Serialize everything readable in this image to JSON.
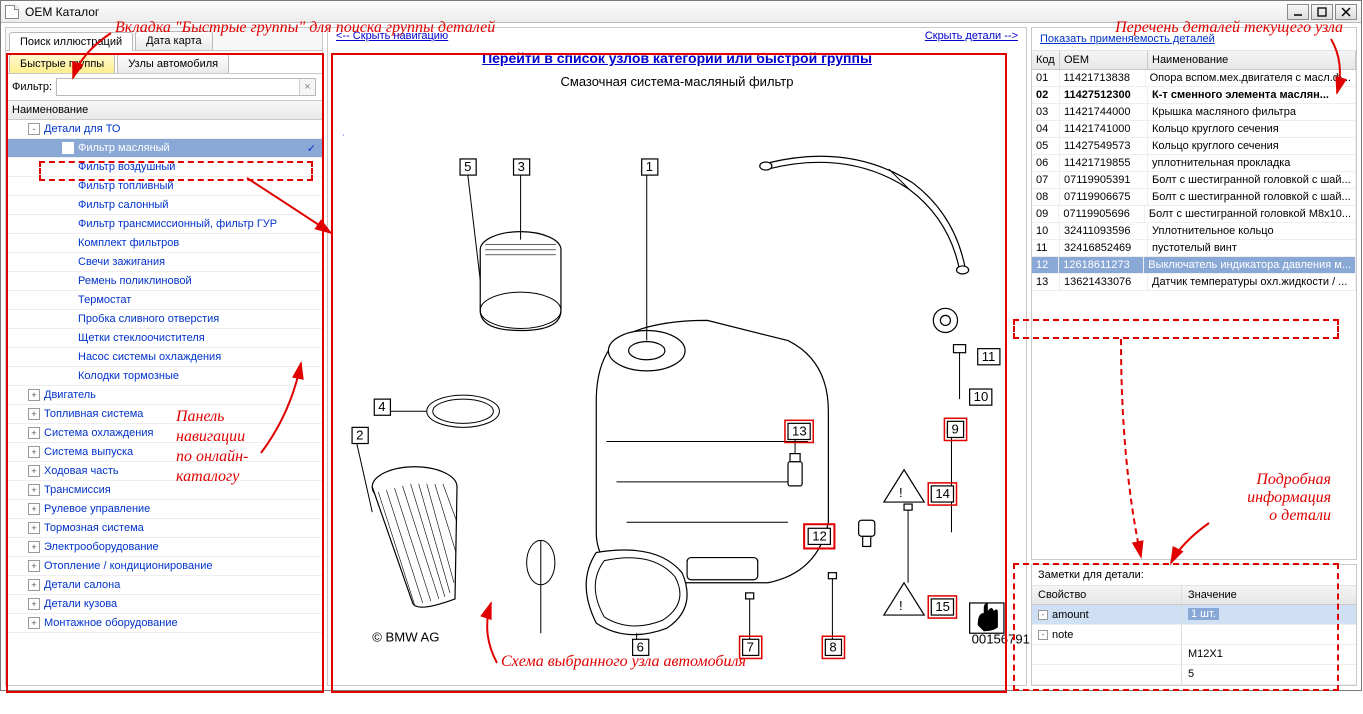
{
  "window": {
    "title": "OEM Каталог"
  },
  "annotations": {
    "top_tabs": "Вкладка \"Быстрые группы\" для поиска группы деталей",
    "nav_panel_l1": "Панель",
    "nav_panel_l2": "навигации",
    "nav_panel_l3": "по онлайн-",
    "nav_panel_l4": "каталогу",
    "center_caption": "Схема выбранного узла автомобиля",
    "right_caption": "Перечень деталей текущего узла",
    "detail_l1": "Подробная",
    "detail_l2": "информация",
    "detail_l3": "о детали"
  },
  "left": {
    "main_tabs": [
      "Поиск иллюстраций",
      "Дата карта"
    ],
    "sub_tabs": [
      "Быстрые группы",
      "Узлы автомобиля"
    ],
    "filter_label": "Фильтр:",
    "tree_header": "Наименование",
    "tree": [
      {
        "label": "Детали для ТО",
        "lvl": 1,
        "exp": "-"
      },
      {
        "label": "Фильтр масляный",
        "lvl": 2,
        "selected": true,
        "check": true
      },
      {
        "label": "Фильтр воздушный",
        "lvl": 2
      },
      {
        "label": "Фильтр топливный",
        "lvl": 2
      },
      {
        "label": "Фильтр салонный",
        "lvl": 2
      },
      {
        "label": "Фильтр трансмиссионный, фильтр ГУР",
        "lvl": 2
      },
      {
        "label": "Комплект фильтров",
        "lvl": 2
      },
      {
        "label": "Свечи зажигания",
        "lvl": 2
      },
      {
        "label": "Ремень поликлиновой",
        "lvl": 2
      },
      {
        "label": "Термостат",
        "lvl": 2
      },
      {
        "label": "Пробка сливного отверстия",
        "lvl": 2
      },
      {
        "label": "Щетки стеклоочистителя",
        "lvl": 2
      },
      {
        "label": "Насос системы охлаждения",
        "lvl": 2
      },
      {
        "label": "Колодки тормозные",
        "lvl": 2
      },
      {
        "label": "Двигатель",
        "lvl": 1,
        "exp": "+"
      },
      {
        "label": "Топливная система",
        "lvl": 1,
        "exp": "+"
      },
      {
        "label": "Система охлаждения",
        "lvl": 1,
        "exp": "+"
      },
      {
        "label": "Система выпуска",
        "lvl": 1,
        "exp": "+"
      },
      {
        "label": "Ходовая часть",
        "lvl": 1,
        "exp": "+"
      },
      {
        "label": "Трансмиссия",
        "lvl": 1,
        "exp": "+"
      },
      {
        "label": "Рулевое управление",
        "lvl": 1,
        "exp": "+"
      },
      {
        "label": "Тормозная система",
        "lvl": 1,
        "exp": "+"
      },
      {
        "label": "Электрооборудование",
        "lvl": 1,
        "exp": "+"
      },
      {
        "label": "Отопление / кондиционирование",
        "lvl": 1,
        "exp": "+"
      },
      {
        "label": "Детали салона",
        "lvl": 1,
        "exp": "+"
      },
      {
        "label": "Детали кузова",
        "lvl": 1,
        "exp": "+"
      },
      {
        "label": "Монтажное оборудование",
        "lvl": 1,
        "exp": "+"
      }
    ]
  },
  "center": {
    "hide_nav": "<-- Скрыть навигацию",
    "hide_detail": "Скрыть детали -->",
    "link": "Перейти в список узлов категории или быстрой группы",
    "subtitle": "Смазочная система-масляный фильтр",
    "copyright": "© BMW AG",
    "img_code": "00156791",
    "callouts": [
      "1",
      "2",
      "3",
      "4",
      "5",
      "6",
      "7",
      "8",
      "9",
      "10",
      "11",
      "12",
      "13",
      "14",
      "15"
    ]
  },
  "right": {
    "link": "Показать применяемость деталей",
    "head": {
      "code": "Код",
      "oem": "OEM",
      "name": "Наименование"
    },
    "rows": [
      {
        "code": "01",
        "oem": "11421713838",
        "name": "Опора вспом.мех.двигателя с масл.ф..."
      },
      {
        "code": "02",
        "oem": "11427512300",
        "name": "К-т сменного элемента маслян...",
        "bold": true
      },
      {
        "code": "03",
        "oem": "11421744000",
        "name": "Крышка масляного фильтра"
      },
      {
        "code": "04",
        "oem": "11421741000",
        "name": "Кольцо круглого сечения"
      },
      {
        "code": "05",
        "oem": "11427549573",
        "name": "Кольцо круглого сечения"
      },
      {
        "code": "06",
        "oem": "11421719855",
        "name": "уплотнительная прокладка"
      },
      {
        "code": "07",
        "oem": "07119905391",
        "name": "Болт с шестигранной головкой с шай..."
      },
      {
        "code": "08",
        "oem": "07119906675",
        "name": "Болт с шестигранной головкой с шай..."
      },
      {
        "code": "09",
        "oem": "07119905696",
        "name": "Болт с шестигранной головкой M8x10..."
      },
      {
        "code": "10",
        "oem": "32411093596",
        "name": "Уплотнительное кольцо"
      },
      {
        "code": "11",
        "oem": "32416852469",
        "name": "пустотелый винт"
      },
      {
        "code": "12",
        "oem": "12618611273",
        "name": "Выключатель индикатора давления м...",
        "sel": true
      },
      {
        "code": "13",
        "oem": "13621433076",
        "name": "Датчик температуры охл.жидкости / ..."
      }
    ],
    "notes_title": "Заметки для детали:",
    "prop_head": {
      "p": "Свойство",
      "v": "Значение"
    },
    "props": [
      {
        "p": "amount",
        "v": "1 шт.",
        "sel": true,
        "exp": "-"
      },
      {
        "p": "note",
        "v": "",
        "exp": "-"
      },
      {
        "p": "",
        "v": "M12X1"
      },
      {
        "p": "",
        "v": "5"
      }
    ]
  },
  "colors": {
    "annotation": "#e00000",
    "link": "#0033cc",
    "selection": "#8aa8d6"
  }
}
